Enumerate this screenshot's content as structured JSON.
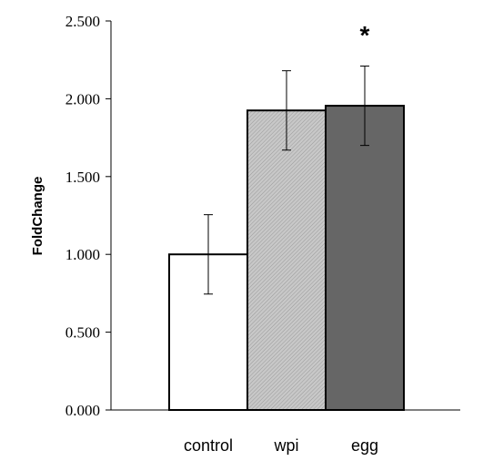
{
  "chart_data": {
    "type": "bar",
    "categories": [
      "control",
      "wpi",
      "egg"
    ],
    "values": [
      1.0,
      1.925,
      1.955
    ],
    "errors": [
      0.255,
      0.255,
      0.255
    ],
    "ylabel": "FoldChange",
    "xlabel": "",
    "ylim": [
      0,
      2.5
    ],
    "yticks": [
      "0.000",
      "0.500",
      "1.000",
      "1.500",
      "2.000",
      "2.500"
    ],
    "bar_colors": [
      "#ffffff",
      "#bfbfbf",
      "#666666"
    ],
    "bar_patterns": [
      "none",
      "diagonal-hatch",
      "none"
    ],
    "annotations": [
      {
        "category": "egg",
        "text": "*"
      }
    ],
    "grid": false,
    "legend": "none"
  }
}
